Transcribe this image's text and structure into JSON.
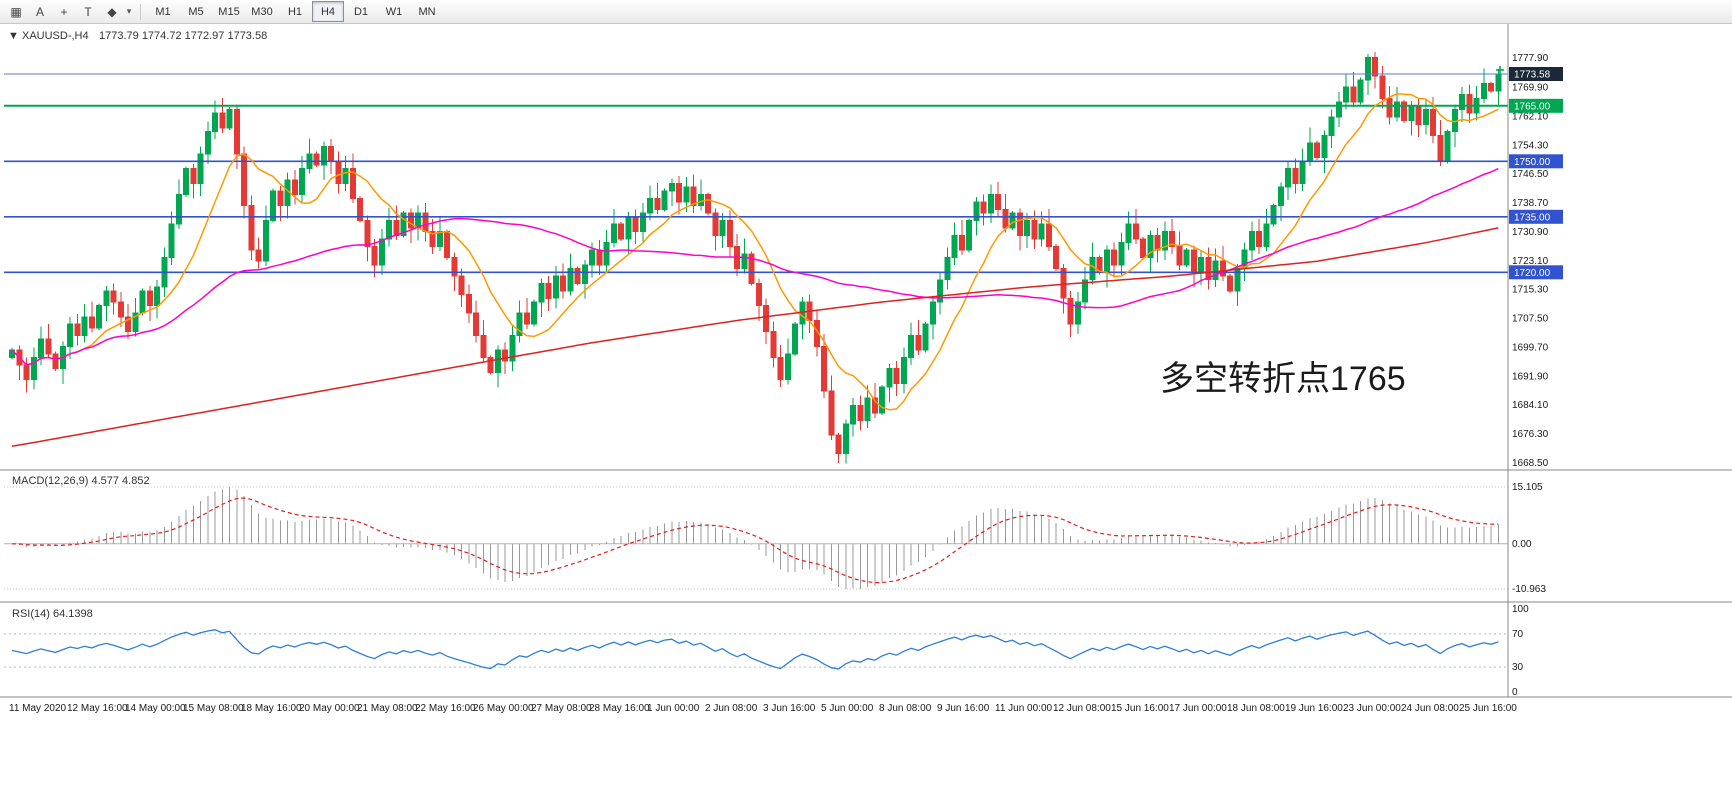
{
  "toolbar": {
    "icons": [
      {
        "name": "chart-grid-icon",
        "glyph": "▦"
      },
      {
        "name": "arrow-tool-icon",
        "glyph": "A"
      },
      {
        "name": "crosshair-tool-icon",
        "glyph": "+"
      },
      {
        "name": "text-tool-icon",
        "glyph": "T"
      },
      {
        "name": "shapes-tool-icon",
        "glyph": "◆"
      },
      {
        "name": "shapes-dropdown-caret",
        "glyph": "▾"
      }
    ],
    "timeframes": [
      "M1",
      "M5",
      "M15",
      "M30",
      "H1",
      "H4",
      "D1",
      "W1",
      "MN"
    ],
    "active_timeframe": "H4"
  },
  "chart": {
    "one_click_glyph": "▼",
    "symbol_label": "XAUUSD-,H4",
    "ohlc": "1773.79 1774.72 1772.97 1773.58",
    "annotation": {
      "text": "多空转折点1765",
      "color": "#ff2020"
    },
    "price_axis_labels": [
      "1777.90",
      "1769.90",
      "1762.10",
      "1754.30",
      "1746.50",
      "1738.70",
      "1730.90",
      "1723.10",
      "1715.30",
      "1707.50",
      "1699.70",
      "1691.90",
      "1684.10",
      "1676.30",
      "1668.50"
    ],
    "hlines": [
      {
        "label": "1773.58",
        "price": 1773.58,
        "line_color": "#5b78c8",
        "tag_bg": "#1b2838",
        "width": 1
      },
      {
        "label": "1765.00",
        "price": 1765.0,
        "line_color": "#00a651",
        "tag_bg": "#00a651",
        "width": 2
      },
      {
        "label": "1750.00",
        "price": 1750.0,
        "line_color": "#3153cf",
        "tag_bg": "#3153cf",
        "width": 1.6
      },
      {
        "label": "1735.00",
        "price": 1735.0,
        "line_color": "#3153cf",
        "tag_bg": "#3153cf",
        "width": 1.6
      },
      {
        "label": "1720.00",
        "price": 1720.0,
        "line_color": "#3153cf",
        "tag_bg": "#3153cf",
        "width": 1.6
      }
    ],
    "time_axis_labels": [
      "11 May 2020",
      "12 May 16:00",
      "14 May 00:00",
      "15 May 08:00",
      "18 May 16:00",
      "20 May 00:00",
      "21 May 08:00",
      "22 May 16:00",
      "26 May 00:00",
      "27 May 08:00",
      "28 May 16:00",
      "1 Jun 00:00",
      "2 Jun 08:00",
      "3 Jun 16:00",
      "5 Jun 00:00",
      "8 Jun 08:00",
      "9 Jun 16:00",
      "11 Jun 00:00",
      "12 Jun 08:00",
      "15 Jun 16:00",
      "17 Jun 00:00",
      "18 Jun 08:00",
      "19 Jun 16:00",
      "23 Jun 00:00",
      "24 Jun 08:00",
      "25 Jun 16:00"
    ]
  },
  "macd": {
    "label": "MACD(12,26,9) 4.577 4.852",
    "params": [
      12,
      26,
      9
    ],
    "values": {
      "macd": 4.577,
      "signal": 4.852
    },
    "axis_labels": [
      "15.105",
      "0.00",
      "-10.963"
    ]
  },
  "rsi": {
    "label": "RSI(14) 64.1398",
    "period": 14,
    "value": 64.1398,
    "axis_labels": [
      "100",
      "70",
      "30",
      "0"
    ],
    "levels": [
      70,
      30
    ]
  },
  "colors": {
    "candle_up": "#00a650",
    "candle_down": "#e53935",
    "ma_fast_orange": "#ff9900",
    "ma_mid_magenta": "#ff00cc",
    "ma_slow_red": "#dd2222",
    "macd_hist": "#9a9a9a",
    "macd_signal": "#e02020",
    "rsi_line": "#2f7ed8",
    "level_dotted": "#a9bdd6",
    "separator": "#8a8a8a",
    "tick_marker_green": "#00b050"
  },
  "chart_data": {
    "type": "candlestick",
    "symbol": "XAUUSD-",
    "timeframe": "H4",
    "current_bar": {
      "open": 1773.79,
      "high": 1774.72,
      "low": 1772.97,
      "close": 1773.58
    },
    "y_range": [
      1668.5,
      1777.9
    ],
    "first_open": 1697,
    "closes": [
      1699,
      1695,
      1691,
      1697,
      1702,
      1698,
      1694,
      1700,
      1706,
      1703,
      1708,
      1705,
      1711,
      1715,
      1712,
      1708,
      1704,
      1709,
      1715,
      1711,
      1716,
      1724,
      1733,
      1741,
      1748,
      1744,
      1752,
      1758,
      1763,
      1759,
      1764,
      1752,
      1738,
      1726,
      1723,
      1734,
      1742,
      1738,
      1745,
      1741,
      1748,
      1752,
      1749,
      1754,
      1750,
      1744,
      1748,
      1740,
      1734,
      1727,
      1722,
      1729,
      1734,
      1730,
      1736,
      1732,
      1736,
      1731,
      1727,
      1731,
      1724,
      1719,
      1714,
      1709,
      1703,
      1697,
      1693,
      1699,
      1696,
      1703,
      1709,
      1706,
      1712,
      1717,
      1713,
      1719,
      1715,
      1721,
      1717,
      1722,
      1726,
      1722,
      1728,
      1733,
      1729,
      1735,
      1731,
      1736,
      1740,
      1737,
      1742,
      1744,
      1739,
      1743,
      1738,
      1741,
      1736,
      1730,
      1734,
      1727,
      1721,
      1725,
      1717,
      1711,
      1704,
      1697,
      1691,
      1698,
      1706,
      1712,
      1707,
      1700,
      1688,
      1676,
      1671,
      1679,
      1684,
      1680,
      1686,
      1682,
      1689,
      1694,
      1690,
      1697,
      1703,
      1699,
      1706,
      1712,
      1718,
      1724,
      1730,
      1726,
      1734,
      1739,
      1736,
      1741,
      1737,
      1732,
      1736,
      1730,
      1734,
      1729,
      1733,
      1727,
      1721,
      1713,
      1706,
      1712,
      1718,
      1724,
      1720,
      1726,
      1722,
      1728,
      1733,
      1729,
      1724,
      1730,
      1726,
      1731,
      1727,
      1722,
      1726,
      1720,
      1724,
      1718,
      1723,
      1719,
      1715,
      1721,
      1726,
      1731,
      1727,
      1733,
      1738,
      1743,
      1748,
      1744,
      1750,
      1755,
      1751,
      1757,
      1762,
      1766,
      1770,
      1766,
      1772,
      1778,
      1773,
      1767,
      1762,
      1766,
      1761,
      1765,
      1760,
      1764,
      1757,
      1750,
      1758,
      1764,
      1768,
      1763,
      1767,
      1771,
      1769,
      1773.6
    ],
    "extremes": {
      "high_index": 187,
      "high": 1779.0,
      "low_index": 114,
      "low": 1668.5
    },
    "moving_averages": {
      "fast_sma_period": 10,
      "mid_sma_period": 50,
      "slow_red_waypoints": [
        [
          0,
          1673
        ],
        [
          20,
          1680
        ],
        [
          40,
          1687
        ],
        [
          60,
          1694
        ],
        [
          80,
          1701
        ],
        [
          100,
          1707
        ],
        [
          120,
          1712
        ],
        [
          140,
          1716
        ],
        [
          160,
          1719
        ],
        [
          180,
          1723
        ],
        [
          195,
          1728
        ],
        [
          205,
          1732
        ]
      ]
    }
  }
}
